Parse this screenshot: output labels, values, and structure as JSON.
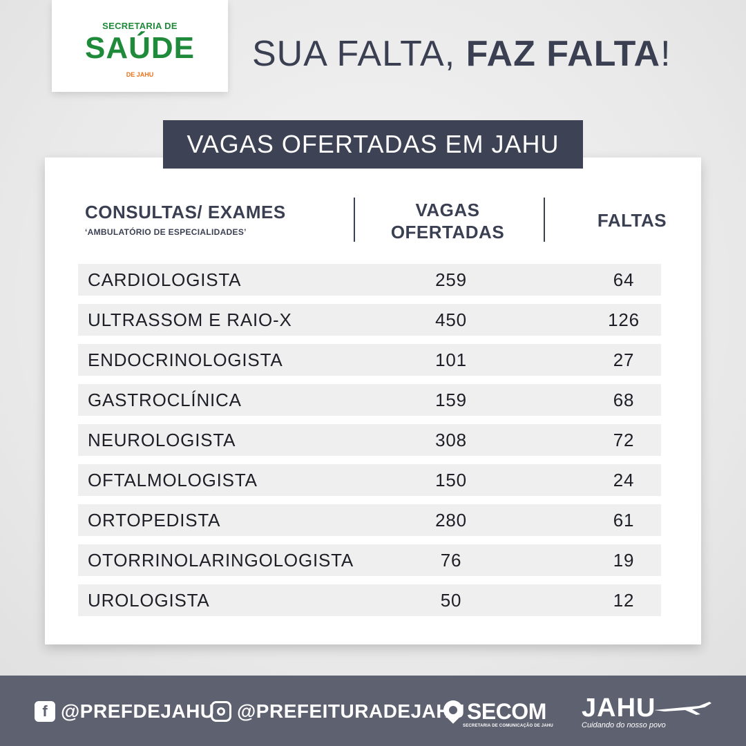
{
  "logo": {
    "top": "SECRETARIA DE",
    "main": "SAÚDE",
    "sub": "DE JAHU"
  },
  "headline": {
    "regular": "SUA FALTA, ",
    "bold": "FAZ FALTA",
    "end": "!"
  },
  "banner": "VAGAS OFERTADAS EM JAHU",
  "table": {
    "headers": {
      "col1": "CONSULTAS/ EXAMES",
      "col1_sub": "‘AMBULATÓRIO DE ESPECIALIDADES’",
      "col2_line1": "VAGAS",
      "col2_line2": "OFERTADAS",
      "col3": "FALTAS"
    },
    "rows": [
      {
        "name": "CARDIOLOGISTA",
        "vagas": "259",
        "faltas": "64"
      },
      {
        "name": "ULTRASSOM E RAIO-X",
        "vagas": "450",
        "faltas": "126"
      },
      {
        "name": "ENDOCRINOLOGISTA",
        "vagas": "101",
        "faltas": "27"
      },
      {
        "name": "GASTROCLÍNICA",
        "vagas": "159",
        "faltas": "68"
      },
      {
        "name": "NEUROLOGISTA",
        "vagas": "308",
        "faltas": "72"
      },
      {
        "name": "OFTALMOLOGISTA",
        "vagas": "150",
        "faltas": "24"
      },
      {
        "name": "ORTOPEDISTA",
        "vagas": "280",
        "faltas": "61"
      },
      {
        "name": "OTORRINOLARINGOLOGISTA",
        "vagas": "76",
        "faltas": "19"
      },
      {
        "name": "UROLOGISTA",
        "vagas": "50",
        "faltas": "12"
      }
    ]
  },
  "footer": {
    "facebook_icon": "facebook-icon",
    "facebook_glyph": "f",
    "facebook_handle": "@PREFDEJAHU",
    "instagram_icon": "instagram-icon",
    "instagram_handle": "@PREFEITURADEJAHU",
    "secom_name": "SECOM",
    "secom_sub": "SECRETARIA DE COMUNICAÇÃO DE JAHU",
    "jahu_name": "JAHU",
    "jahu_slogan": "Cuidando do nosso povo"
  },
  "colors": {
    "logo_green": "#1e8a3a",
    "logo_orange": "#e8731c",
    "navy": "#3d4255",
    "footer": "#5e6170",
    "row_bg": "#efefef"
  }
}
